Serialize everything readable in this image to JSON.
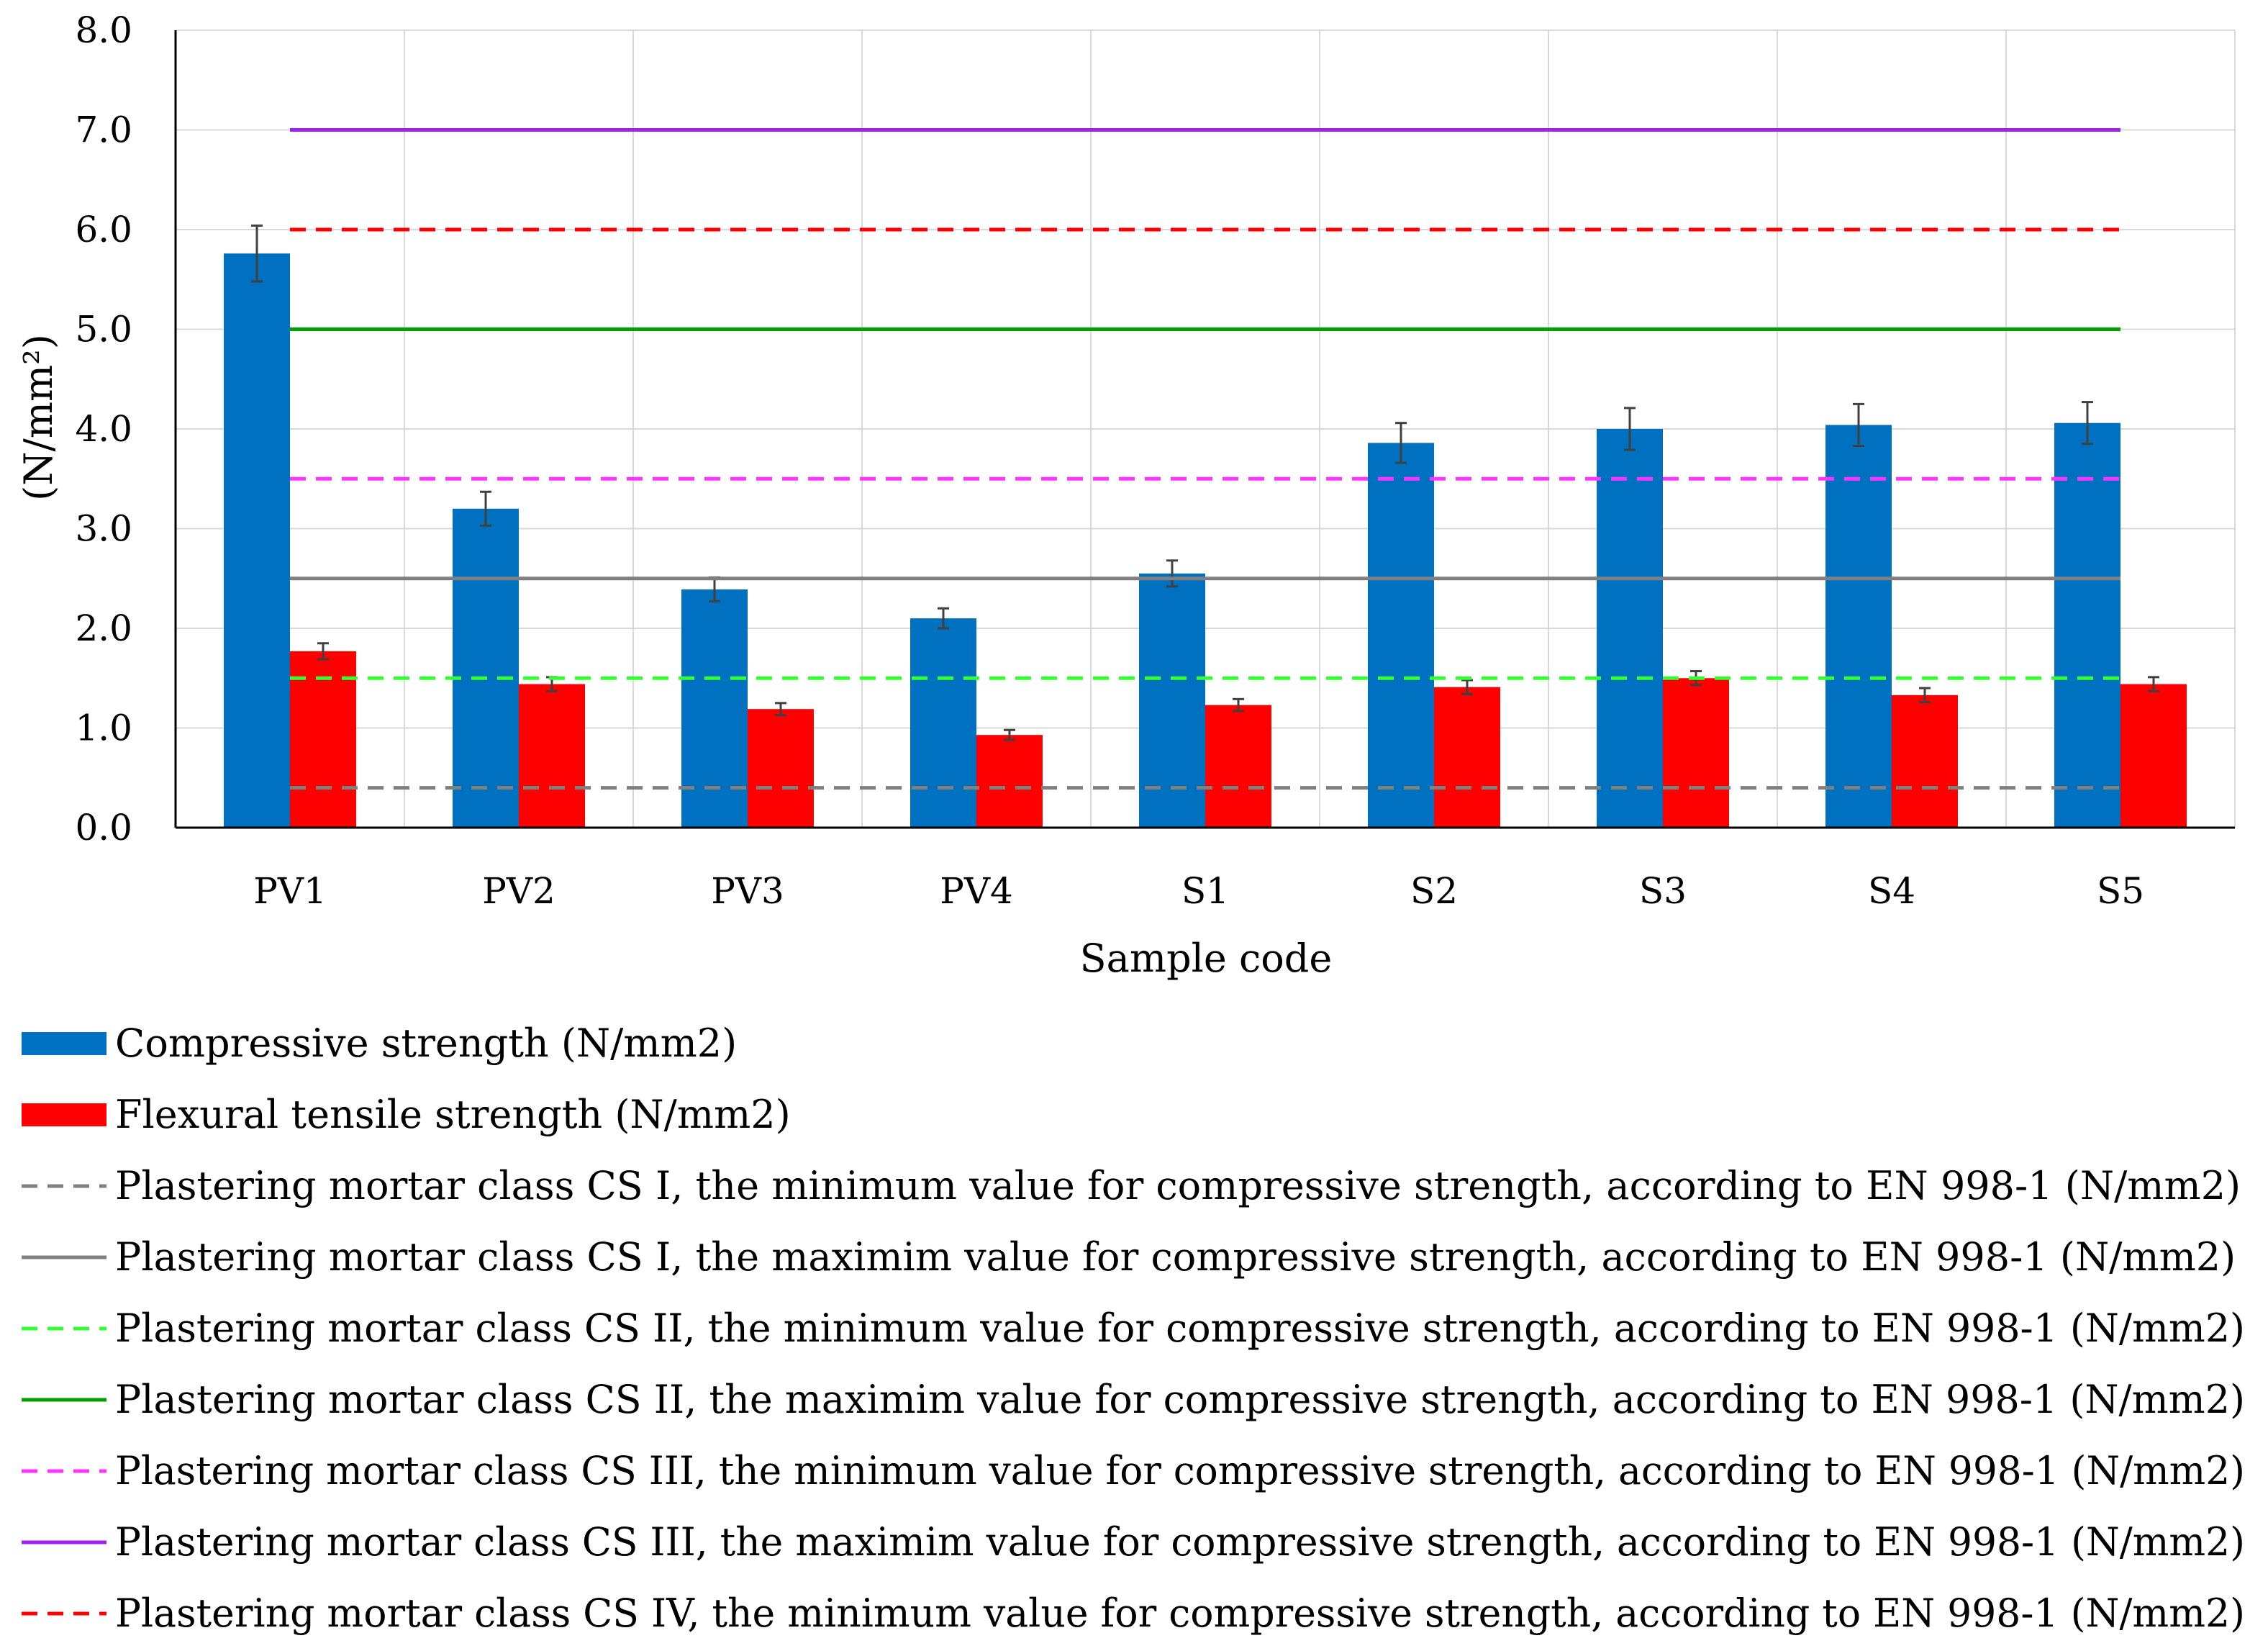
{
  "chart_data": {
    "type": "bar",
    "title": "",
    "xlabel": "Sample code",
    "ylabel": "(N/mm²)",
    "ylim": [
      0,
      8
    ],
    "yticks": [
      "0.0",
      "1.0",
      "2.0",
      "3.0",
      "4.0",
      "5.0",
      "6.0",
      "7.0",
      "8.0"
    ],
    "grid": true,
    "categories": [
      "PV1",
      "PV2",
      "PV3",
      "PV4",
      "S1",
      "S2",
      "S3",
      "S4",
      "S5"
    ],
    "series": [
      {
        "name": "Compressive strength (N/mm2)",
        "color": "#0070C0",
        "values": [
          5.76,
          3.2,
          2.39,
          2.1,
          2.55,
          3.86,
          4.0,
          4.04,
          4.06
        ],
        "errors": [
          0.28,
          0.17,
          0.12,
          0.1,
          0.13,
          0.2,
          0.21,
          0.21,
          0.21
        ]
      },
      {
        "name": "Flexural tensile strength (N/mm2)",
        "color": "#FF0000",
        "values": [
          1.77,
          1.44,
          1.19,
          0.93,
          1.23,
          1.41,
          1.5,
          1.33,
          1.44
        ],
        "errors": [
          0.08,
          0.07,
          0.06,
          0.05,
          0.06,
          0.07,
          0.07,
          0.07,
          0.07
        ]
      }
    ],
    "reference_lines": [
      {
        "name": "Plastering mortar class CS I, the minimum value for compressive strength, according to EN 998-1 (N/mm2)",
        "value": 0.4,
        "color": "#808080",
        "dashed": true
      },
      {
        "name": "Plastering mortar class CS I, the maximim value for compressive strength, according to EN 998-1 (N/mm2)",
        "value": 2.5,
        "color": "#808080",
        "dashed": false
      },
      {
        "name": "Plastering mortar class CS II, the minimum value for compressive strength, according to EN 998-1 (N/mm2)",
        "value": 1.5,
        "color": "#33FF33",
        "dashed": true
      },
      {
        "name": "Plastering mortar class CS II, the maximim value for compressive strength, according to EN 998-1 (N/mm2)",
        "value": 5.0,
        "color": "#00A000",
        "dashed": false
      },
      {
        "name": "Plastering mortar class CS III, the minimum value for compressive strength, according to EN 998-1 (N/mm2)",
        "value": 3.5,
        "color": "#FF33FF",
        "dashed": true
      },
      {
        "name": "Plastering mortar class CS III, the maximim value for compressive strength, according to EN 998-1 (N/mm2)",
        "value": 7.0,
        "color": "#A020F0",
        "dashed": false
      },
      {
        "name": "Plastering mortar class CS IV, the minimum value for compressive strength, according to EN 998-1 (N/mm2)",
        "value": 6.0,
        "color": "#FF0000",
        "dashed": true
      }
    ]
  }
}
